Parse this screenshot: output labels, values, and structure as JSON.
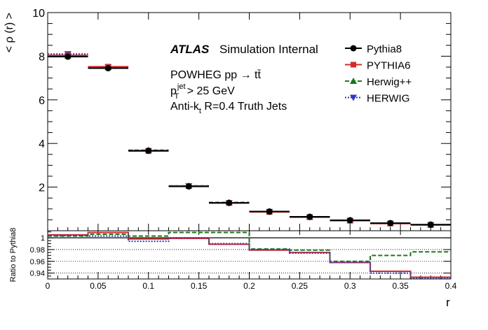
{
  "chart_data": [
    {
      "type": "scatter",
      "panel": "main",
      "ylabel": "< ρ (r) >",
      "ylim": [
        0,
        10
      ],
      "yticks": [
        2,
        4,
        6,
        8,
        10
      ],
      "annotations": {
        "atlas": "ATLAS",
        "status": "Simulation Internal",
        "line1": "POWHEG pp → tt̄",
        "line2_base": "p",
        "line2_sup": "jet",
        "line2_sub": "T",
        "line2_rest": " > 25 GeV",
        "line3_base": "Anti-k",
        "line3_sub": "t",
        "line3_rest": " R=0.4 Truth Jets"
      },
      "legend_position": "top-right",
      "bin_edges": [
        0,
        0.04,
        0.08,
        0.12,
        0.16,
        0.2,
        0.24,
        0.28,
        0.32,
        0.36,
        0.4
      ],
      "series": [
        {
          "name": "Pythia8",
          "color": "#000000",
          "marker": "circle",
          "line": "solid",
          "values": [
            7.98,
            7.45,
            3.67,
            2.03,
            1.28,
            0.88,
            0.64,
            0.48,
            0.35,
            0.28
          ]
        },
        {
          "name": "PYTHIA6",
          "color": "#d42a2a",
          "marker": "square",
          "line": "solid",
          "values": [
            8.04,
            7.52,
            3.65,
            2.05,
            1.27,
            0.86,
            0.62,
            0.46,
            0.33,
            0.26
          ]
        },
        {
          "name": "Herwig++",
          "color": "#1a7a1a",
          "marker": "triangle-up",
          "line": "dashed",
          "values": [
            8.02,
            7.49,
            3.69,
            2.06,
            1.3,
            0.88,
            0.63,
            0.47,
            0.34,
            0.27
          ]
        },
        {
          "name": "HERWIG",
          "color": "#3434c8",
          "marker": "triangle-down",
          "line": "dotted",
          "values": [
            8.1,
            7.5,
            3.66,
            2.05,
            1.27,
            0.87,
            0.62,
            0.46,
            0.33,
            0.27
          ]
        }
      ]
    },
    {
      "type": "line",
      "panel": "ratio",
      "ylabel": "Ratio to Pythia8",
      "xlabel": "r",
      "xlim": [
        0,
        0.4
      ],
      "ylim": [
        0.93,
        1.012
      ],
      "xticks": [
        0,
        0.05,
        0.1,
        0.15,
        0.2,
        0.25,
        0.3,
        0.35,
        0.4
      ],
      "xtick_labels": [
        "0",
        "0.05",
        "0.1",
        "0.15",
        "0.2",
        "0.25",
        "0.3",
        "0.35",
        "0.4"
      ],
      "yticks": [
        0.94,
        0.96,
        0.98,
        1
      ],
      "ytick_labels": [
        "0.94",
        "0.96",
        "0.98",
        "1"
      ],
      "grid_lines": [
        0.94,
        0.96,
        0.98,
        1
      ],
      "bin_edges": [
        0,
        0.04,
        0.08,
        0.12,
        0.16,
        0.2,
        0.24,
        0.28,
        0.32,
        0.36,
        0.4
      ],
      "series": [
        {
          "name": "PYTHIA6",
          "color": "#d42a2a",
          "line": "solid",
          "values": [
            1.005,
            1.009,
            0.998,
            0.999,
            0.989,
            0.979,
            0.975,
            0.958,
            0.943,
            0.933
          ]
        },
        {
          "name": "Herwig++",
          "color": "#1a7a1a",
          "line": "dashed",
          "values": [
            1.003,
            1.006,
            1.003,
            1.009,
            1.009,
            0.981,
            0.979,
            0.96,
            0.97,
            0.976
          ]
        },
        {
          "name": "HERWIG",
          "color": "#3434c8",
          "line": "dotted",
          "values": [
            1.004,
            1.003,
            0.994,
            1.0,
            0.99,
            0.98,
            0.974,
            0.958,
            0.94,
            0.932
          ]
        }
      ]
    }
  ]
}
